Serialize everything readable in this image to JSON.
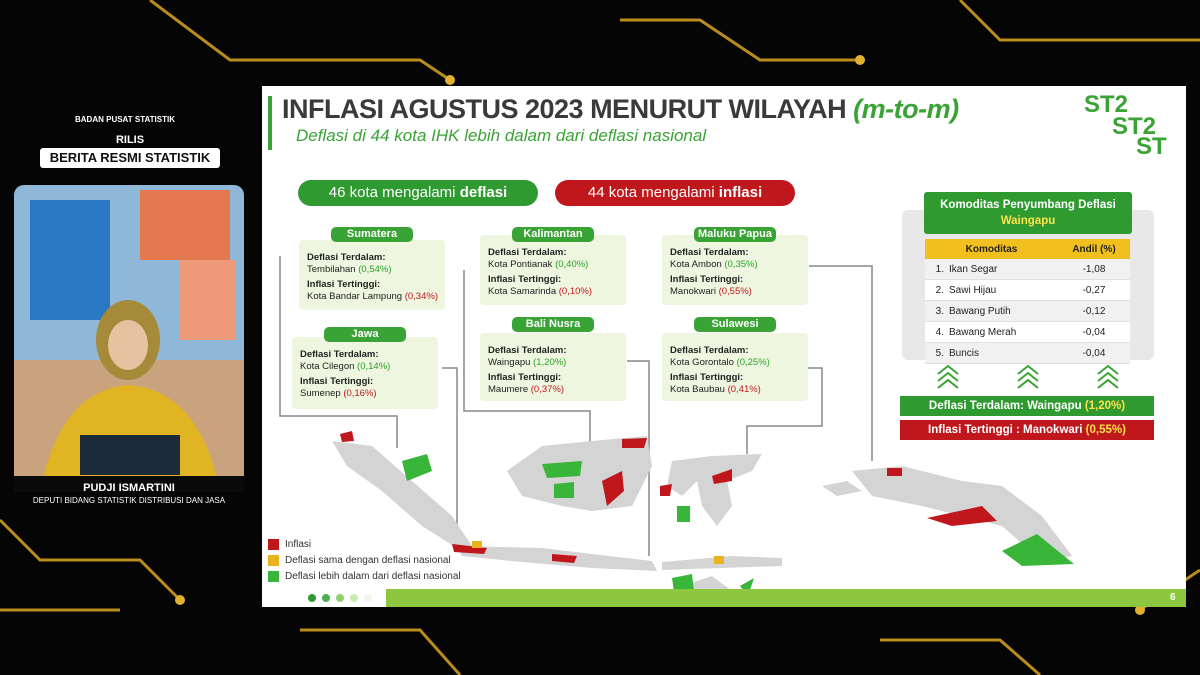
{
  "header": {
    "logo_text": "BADAN PUSAT STATISTIK",
    "rilis": "RILIS",
    "program": "BERITA RESMI STATISTIK"
  },
  "speaker": {
    "name": "PUDJI ISMARTINI",
    "role": "DEPUTI BIDANG STATISTIK DISTRIBUSI DAN JASA"
  },
  "slide": {
    "title": "INFLASI AGUSTUS 2023 MENURUT WILAYAH",
    "title_suffix": "(m-to-m)",
    "subtitle": "Deflasi di 44 kota IHK lebih dalam dari deflasi nasional",
    "deflasi_badge": {
      "prefix": "46 kota mengalami",
      "emph": "deflasi"
    },
    "inflasi_badge": {
      "prefix": "44 kota mengalami",
      "emph": "inflasi"
    },
    "regions": [
      {
        "name": "Sumatera",
        "deflasi_label": "Deflasi Terdalam:",
        "deflasi_city": "Tembilahan",
        "deflasi_value": "(0,54%)",
        "inflasi_label": "Inflasi Tertinggi:",
        "inflasi_city": "Kota Bandar Lampung",
        "inflasi_value": "(0,34%)"
      },
      {
        "name": "Jawa",
        "deflasi_label": "Deflasi Terdalam:",
        "deflasi_city": "Kota Cilegon",
        "deflasi_value": "(0,14%)",
        "inflasi_label": "Inflasi Tertinggi:",
        "inflasi_city": "Sumenep",
        "inflasi_value": "(0,16%)"
      },
      {
        "name": "Kalimantan",
        "deflasi_label": "Deflasi Terdalam:",
        "deflasi_city": "Kota Pontianak",
        "deflasi_value": "(0,40%)",
        "inflasi_label": "Inflasi Tertinggi:",
        "inflasi_city": "Kota Samarinda",
        "inflasi_value": "(0,10%)"
      },
      {
        "name": "Bali Nusra",
        "deflasi_label": "Deflasi Terdalam:",
        "deflasi_city": "Waingapu",
        "deflasi_value": "(1,20%)",
        "inflasi_label": "Inflasi Tertinggi:",
        "inflasi_city": "Maumere",
        "inflasi_value": "(0,37%)"
      },
      {
        "name": "Maluku Papua",
        "deflasi_label": "Deflasi Terdalam:",
        "deflasi_city": "Kota Ambon",
        "deflasi_value": "(0,35%)",
        "inflasi_label": "Inflasi Tertinggi:",
        "inflasi_city": "Manokwari",
        "inflasi_value": "(0,55%)"
      },
      {
        "name": "Sulawesi",
        "deflasi_label": "Deflasi Terdalam:",
        "deflasi_city": "Kota Gorontalo",
        "deflasi_value": "(0,25%)",
        "inflasi_label": "Inflasi Tertinggi:",
        "inflasi_city": "Kota Baubau",
        "inflasi_value": "(0,41%)"
      }
    ],
    "commodity_table": {
      "title": "Komoditas Penyumbang Deflasi",
      "city": "Waingapu",
      "headers": [
        "Komoditas",
        "Andil (%)"
      ],
      "rows": [
        [
          "1.",
          "Ikan Segar",
          "-1,08"
        ],
        [
          "2.",
          "Sawi Hijau",
          "-0,27"
        ],
        [
          "3.",
          "Bawang Putih",
          "-0,12"
        ],
        [
          "4.",
          "Bawang Merah",
          "-0,04"
        ],
        [
          "5.",
          "Buncis",
          "-0,04"
        ]
      ]
    },
    "summary_deflasi": {
      "text": "Deflasi Terdalam: Waingapu",
      "value": "(1,20%)"
    },
    "summary_inflasi": {
      "text": "Inflasi Tertinggi : Manokwari",
      "value": "(0,55%)"
    },
    "legend": [
      "Inflasi",
      "Deflasi sama dengan deflasi nasional",
      "Deflasi lebih dalam dari deflasi nasional"
    ],
    "page_number": "6"
  }
}
